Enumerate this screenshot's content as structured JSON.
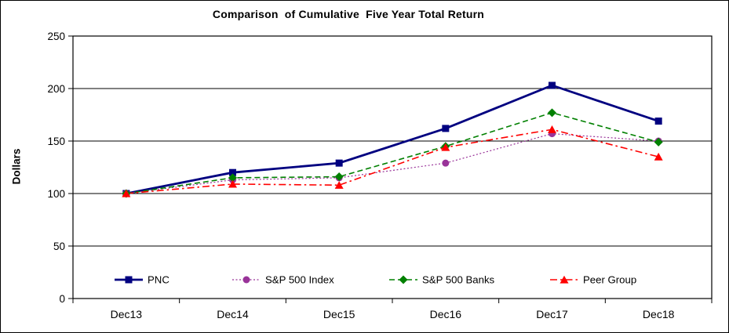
{
  "frame": {
    "background": "#ffffff",
    "border_color": "#000000"
  },
  "chart_data": {
    "type": "line",
    "title": "Comparison  of Cumulative  Five Year Total Return",
    "ylabel": "Dollars",
    "xlabel": "",
    "categories": [
      "Dec13",
      "Dec14",
      "Dec15",
      "Dec16",
      "Dec17",
      "Dec18"
    ],
    "ylim": [
      0,
      250
    ],
    "y_ticks": [
      0,
      50,
      100,
      150,
      200,
      250
    ],
    "grid": "horizontal",
    "legend_position": "bottom-inside",
    "series": [
      {
        "name": "PNC",
        "color": "#000080",
        "line_style": "solid",
        "line_width": 2.8,
        "marker": "square",
        "values": [
          100,
          120,
          129,
          162,
          203,
          169
        ]
      },
      {
        "name": "S&P 500 Index",
        "color": "#993399",
        "line_style": "dotted",
        "line_width": 1.2,
        "marker": "circle",
        "values": [
          100,
          113,
          115,
          129,
          157,
          150
        ]
      },
      {
        "name": "S&P 500 Banks",
        "color": "#008000",
        "line_style": "dashed",
        "line_width": 1.6,
        "marker": "diamond",
        "values": [
          100,
          115,
          116,
          145,
          177,
          149
        ]
      },
      {
        "name": "Peer Group",
        "color": "#FF0000",
        "line_style": "dash-dot",
        "line_width": 1.6,
        "marker": "triangle",
        "values": [
          100,
          109,
          108,
          144,
          161,
          135
        ]
      }
    ]
  }
}
